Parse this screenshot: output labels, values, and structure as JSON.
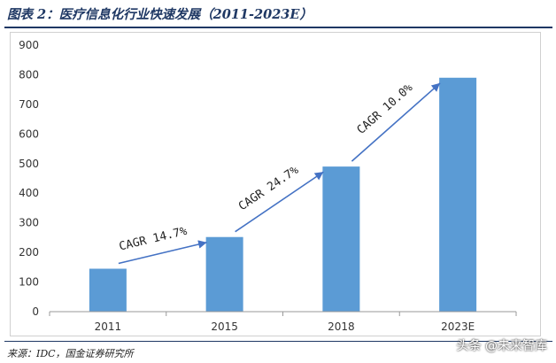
{
  "figure": {
    "title": "图表 2：医疗信息化行业快速发展（2011-2023E）",
    "source": "来源：IDC，国金证券研究所",
    "watermark": "头条 @未来智库"
  },
  "colors": {
    "bar": "#5b9bd5",
    "arrow": "#4472c4",
    "title": "#1f3864"
  },
  "chart_data": {
    "type": "bar",
    "categories": [
      "2011",
      "2015",
      "2018",
      "2023E"
    ],
    "values": [
      145,
      252,
      490,
      790
    ],
    "ylim": [
      0,
      900
    ],
    "yticks": [
      0,
      100,
      200,
      300,
      400,
      500,
      600,
      700,
      800,
      900
    ],
    "grid": false,
    "annotations": [
      {
        "text": "CAGR 14.7%",
        "from": "2011",
        "to": "2015"
      },
      {
        "text": "CAGR 24.7%",
        "from": "2015",
        "to": "2018"
      },
      {
        "text": "CAGR 10.0%",
        "from": "2018",
        "to": "2023E"
      }
    ]
  }
}
